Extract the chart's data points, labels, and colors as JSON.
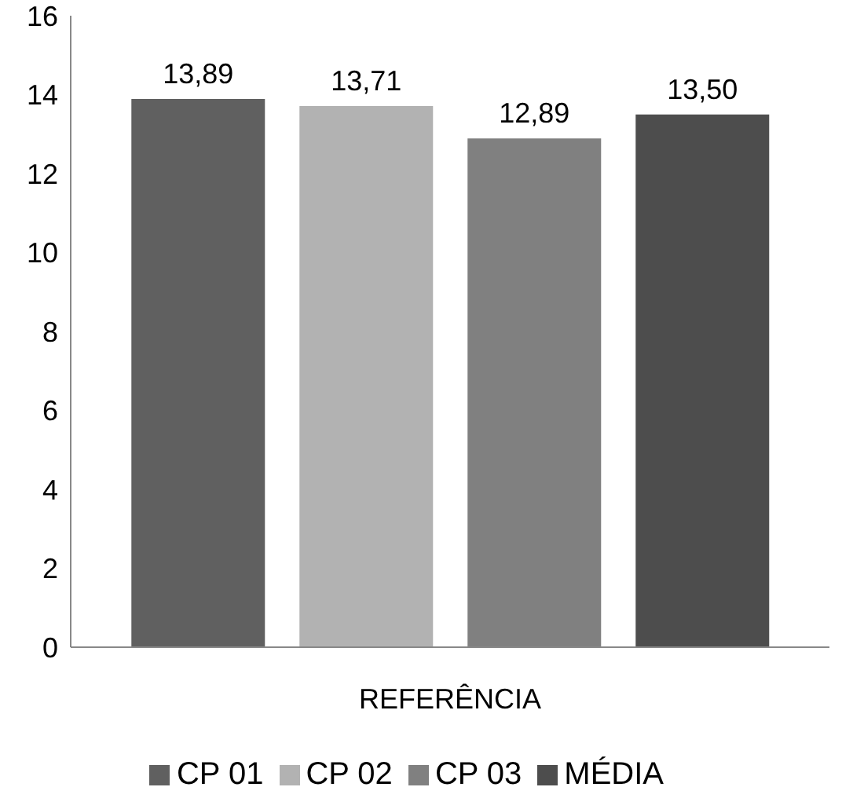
{
  "chart_data": {
    "type": "bar",
    "categories": [
      "REFERÊNCIA"
    ],
    "series": [
      {
        "name": "CP 01",
        "color": "#606060",
        "values": [
          13.89
        ],
        "value_labels": [
          "13,89"
        ]
      },
      {
        "name": "CP 02",
        "color": "#b2b2b2",
        "values": [
          13.71
        ],
        "value_labels": [
          "13,71"
        ]
      },
      {
        "name": "CP 03",
        "color": "#808080",
        "values": [
          12.89
        ],
        "value_labels": [
          "12,89"
        ]
      },
      {
        "name": "MÉDIA",
        "color": "#4d4d4d",
        "values": [
          13.5
        ],
        "value_labels": [
          "13,50"
        ]
      }
    ],
    "ylim": [
      0,
      16
    ],
    "yticks": [
      0,
      2,
      4,
      6,
      8,
      10,
      12,
      14,
      16
    ],
    "grid": false,
    "legend": "bottom"
  }
}
